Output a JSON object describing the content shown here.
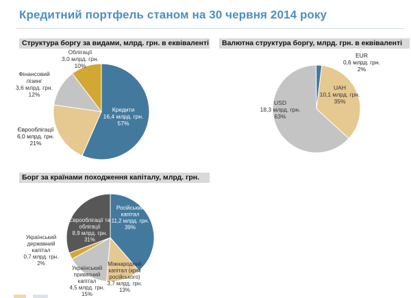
{
  "page": {
    "title": "Кредитний портфель станом на 30 червня 2014 року"
  },
  "colors": {
    "blue": "#44799e",
    "tan": "#e6c891",
    "gray": "#c4c4c4",
    "gold": "#d2a733",
    "dark": "#575757",
    "title": "#4a8fc1"
  },
  "chart_data": [
    {
      "type": "pie",
      "title": "Структура боргу за видами, млрд. грн. в еквіваленті",
      "unit": "млрд. грн.",
      "slices": [
        {
          "label": "Кредити",
          "value": 16.4,
          "percent": 57
        },
        {
          "label": "Єврооблігації",
          "value": 6.0,
          "percent": 21
        },
        {
          "label": "Фінансовий лізинг",
          "value": 3.6,
          "percent": 12
        },
        {
          "label": "Облігації",
          "value": 3.0,
          "percent": 10
        }
      ]
    },
    {
      "type": "pie",
      "title": "Валютна структура боргу, млрд. грн. в еквіваленті",
      "unit": "млрд. грн.",
      "slices": [
        {
          "label": "UAH",
          "value": 10.1,
          "percent": 35
        },
        {
          "label": "USD",
          "value": 18.3,
          "percent": 63
        },
        {
          "label": "EUR",
          "value": 0.6,
          "percent": 2
        }
      ]
    },
    {
      "type": "pie",
      "title": "Борг за країнами походження капіталу, млрд. грн.",
      "unit": "млрд. грн.",
      "slices": [
        {
          "label": "Російський капітал",
          "value": 11.2,
          "percent": 39
        },
        {
          "label": "Міжнародний капітал (крім російського)",
          "value": 3.7,
          "percent": 13
        },
        {
          "label": "Український приватний капітал",
          "value": 4.5,
          "percent": 15
        },
        {
          "label": "Український державний капітал",
          "value": 0.7,
          "percent": 2
        },
        {
          "label": "Єврооблігації та облігації",
          "value": 8.9,
          "percent": 31
        }
      ]
    }
  ]
}
